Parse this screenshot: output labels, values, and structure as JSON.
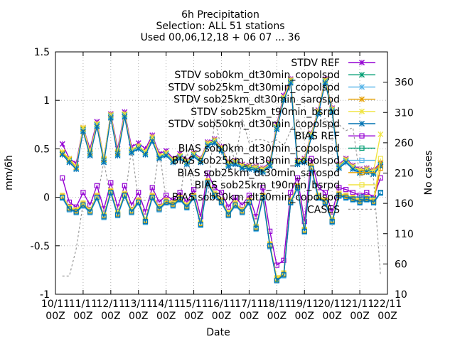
{
  "chart_data": {
    "type": "line",
    "title_lines": [
      "6h Precipitation",
      "Selection: ALL     51 stations",
      "Used 00,06,12,18 + 06 07 ... 36"
    ],
    "xlabel": "Date",
    "ylabel": "mm/6h",
    "y2label": "No cases",
    "ylim": [
      -1,
      1.5
    ],
    "y2lim": [
      10,
      410
    ],
    "xlim_index": [
      0,
      48
    ],
    "yticks": [
      "-1",
      "-0.5",
      "0",
      "0.5",
      "1",
      "1.5"
    ],
    "y2ticks": [
      "10",
      "60",
      "110",
      "160",
      "210",
      "260",
      "310",
      "360"
    ],
    "xticks": [
      {
        "top": "10/11",
        "bottom": "00Z"
      },
      {
        "top": "11/11",
        "bottom": "00Z"
      },
      {
        "top": "12/11",
        "bottom": "00Z"
      },
      {
        "top": "13/11",
        "bottom": "00Z"
      },
      {
        "top": "14/11",
        "bottom": "00Z"
      },
      {
        "top": "15/11",
        "bottom": "00Z"
      },
      {
        "top": "16/11",
        "bottom": "00Z"
      },
      {
        "top": "17/11",
        "bottom": "00Z"
      },
      {
        "top": "18/11",
        "bottom": "00Z"
      },
      {
        "top": "19/11",
        "bottom": "00Z"
      },
      {
        "top": "20/11",
        "bottom": "00Z"
      },
      {
        "top": "21/11",
        "bottom": "00Z"
      },
      {
        "top": "22/11",
        "bottom": "00Z"
      }
    ],
    "grid": true,
    "legend_position": "top-right",
    "x": [
      "10/11 06Z",
      "10/11 12Z",
      "10/11 18Z",
      "11/11 00Z",
      "11/11 06Z",
      "11/11 12Z",
      "11/11 18Z",
      "12/11 00Z",
      "12/11 06Z",
      "12/11 12Z",
      "12/11 18Z",
      "13/11 00Z",
      "13/11 06Z",
      "13/11 12Z",
      "13/11 18Z",
      "14/11 00Z",
      "14/11 06Z",
      "14/11 12Z",
      "14/11 18Z",
      "15/11 00Z",
      "15/11 06Z",
      "15/11 12Z",
      "15/11 18Z",
      "16/11 00Z",
      "16/11 06Z",
      "16/11 12Z",
      "16/11 18Z",
      "17/11 00Z",
      "17/11 06Z",
      "17/11 12Z",
      "17/11 18Z",
      "18/11 00Z",
      "18/11 06Z",
      "18/11 12Z",
      "18/11 18Z",
      "19/11 00Z",
      "19/11 06Z",
      "19/11 12Z",
      "19/11 18Z",
      "20/11 00Z",
      "20/11 06Z",
      "20/11 12Z",
      "20/11 18Z",
      "21/11 00Z",
      "21/11 06Z",
      "21/11 12Z",
      "21/11 18Z"
    ],
    "series": [
      {
        "name": "STDV REF",
        "color": "#9400d3",
        "marker": "x",
        "axis": "y",
        "values": [
          0.55,
          0.4,
          0.35,
          0.72,
          0.5,
          0.78,
          0.4,
          0.86,
          0.5,
          0.88,
          0.52,
          0.56,
          0.5,
          0.64,
          0.45,
          0.48,
          0.4,
          0.45,
          0.38,
          0.46,
          0.4,
          0.57,
          0.6,
          0.52,
          0.36,
          0.38,
          0.34,
          0.33,
          0.32,
          0.3,
          0.36,
          0.75,
          1.05,
          1.22,
          0.38,
          0.4,
          0.66,
          0.9,
          1.22,
          0.92,
          0.34,
          0.4,
          0.33,
          0.29,
          0.3,
          0.28,
          0.36
        ]
      },
      {
        "name": "STDV sob0km_dt30min_copolspd",
        "color": "#009e73",
        "marker": "x",
        "axis": "y",
        "values": [
          0.45,
          0.38,
          0.3,
          0.7,
          0.45,
          0.75,
          0.38,
          0.84,
          0.45,
          0.85,
          0.48,
          0.52,
          0.46,
          0.6,
          0.42,
          0.45,
          0.38,
          0.42,
          0.36,
          0.44,
          0.38,
          0.55,
          0.58,
          0.5,
          0.34,
          0.36,
          0.32,
          0.31,
          0.3,
          0.28,
          0.34,
          0.72,
          1.02,
          1.2,
          0.36,
          0.38,
          0.64,
          0.88,
          1.2,
          0.9,
          0.32,
          0.38,
          0.31,
          0.27,
          0.28,
          0.26,
          0.34
        ]
      },
      {
        "name": "STDV sob25km_dt30min_copolspd",
        "color": "#56b4e9",
        "marker": "x",
        "axis": "y",
        "values": [
          0.44,
          0.37,
          0.3,
          0.69,
          0.44,
          0.74,
          0.37,
          0.83,
          0.44,
          0.84,
          0.47,
          0.51,
          0.45,
          0.59,
          0.41,
          0.44,
          0.37,
          0.41,
          0.35,
          0.43,
          0.37,
          0.54,
          0.57,
          0.49,
          0.33,
          0.35,
          0.31,
          0.3,
          0.29,
          0.27,
          0.33,
          0.71,
          1.01,
          1.19,
          0.35,
          0.37,
          0.63,
          0.87,
          1.19,
          0.89,
          0.31,
          0.37,
          0.3,
          0.26,
          0.27,
          0.25,
          0.33
        ]
      },
      {
        "name": "STDV sob25km_dt30min_sarospd",
        "color": "#e69f00",
        "marker": "x",
        "axis": "y",
        "values": [
          0.46,
          0.39,
          0.31,
          0.71,
          0.46,
          0.76,
          0.39,
          0.85,
          0.46,
          0.86,
          0.49,
          0.53,
          0.47,
          0.62,
          0.43,
          0.46,
          0.39,
          0.43,
          0.37,
          0.45,
          0.39,
          0.56,
          0.59,
          0.51,
          0.35,
          0.37,
          0.33,
          0.32,
          0.31,
          0.29,
          0.35,
          0.73,
          1.03,
          1.21,
          0.37,
          0.39,
          0.65,
          0.89,
          1.21,
          0.91,
          0.33,
          0.39,
          0.32,
          0.28,
          0.29,
          0.27,
          0.35
        ]
      },
      {
        "name": "STDV sob25km_t90min_bsrpd",
        "color": "#f0e442",
        "marker": "x",
        "axis": "y",
        "values": [
          0.47,
          0.4,
          0.32,
          0.72,
          0.47,
          0.76,
          0.4,
          0.85,
          0.47,
          0.86,
          0.49,
          0.53,
          0.47,
          0.62,
          0.43,
          0.46,
          0.39,
          0.43,
          0.37,
          0.45,
          0.39,
          0.56,
          0.59,
          0.51,
          0.35,
          0.37,
          0.33,
          0.32,
          0.31,
          0.29,
          0.35,
          0.73,
          1.03,
          1.21,
          0.37,
          0.39,
          0.65,
          0.89,
          1.21,
          0.91,
          0.33,
          0.39,
          0.32,
          0.28,
          0.29,
          0.27,
          0.65
        ]
      },
      {
        "name": "STDV sob50km_dt30min_copolspd",
        "color": "#0072b2",
        "marker": "x",
        "axis": "y",
        "values": [
          0.44,
          0.36,
          0.29,
          0.68,
          0.43,
          0.73,
          0.36,
          0.82,
          0.43,
          0.83,
          0.46,
          0.5,
          0.44,
          0.58,
          0.4,
          0.43,
          0.36,
          0.4,
          0.34,
          0.42,
          0.36,
          0.53,
          0.56,
          0.48,
          0.32,
          0.34,
          0.3,
          0.29,
          0.28,
          0.26,
          0.32,
          0.7,
          1.0,
          1.18,
          0.34,
          0.36,
          0.62,
          0.86,
          1.18,
          0.88,
          0.3,
          0.36,
          0.29,
          0.25,
          0.26,
          0.24,
          0.32
        ]
      },
      {
        "name": "BIAS REF",
        "color": "#9400d3",
        "marker": "square",
        "axis": "y",
        "values": [
          0.2,
          -0.05,
          -0.1,
          0.05,
          -0.08,
          0.12,
          -0.12,
          0.15,
          -0.1,
          0.12,
          -0.08,
          0.05,
          -0.15,
          0.1,
          -0.05,
          0.02,
          -0.03,
          0.05,
          -0.05,
          0.08,
          -0.2,
          0.25,
          0.1,
          0.05,
          -0.1,
          0.0,
          -0.08,
          0.02,
          -0.2,
          0.1,
          -0.35,
          -0.7,
          -0.65,
          0.05,
          0.2,
          -0.25,
          0.4,
          0.1,
          0.05,
          -0.15,
          0.1,
          0.08,
          0.05,
          0.02,
          0.05,
          0.0,
          0.2
        ]
      },
      {
        "name": "BIAS sob0km_dt30min_copolspd",
        "color": "#009e73",
        "marker": "square",
        "axis": "y",
        "values": [
          0.0,
          -0.12,
          -0.15,
          -0.08,
          -0.15,
          0.0,
          -0.2,
          0.05,
          -0.18,
          0.02,
          -0.15,
          -0.05,
          -0.25,
          0.0,
          -0.12,
          -0.05,
          -0.08,
          -0.02,
          -0.1,
          0.0,
          -0.28,
          0.15,
          0.02,
          -0.05,
          -0.18,
          -0.08,
          -0.15,
          -0.05,
          -0.32,
          0.0,
          -0.5,
          -0.85,
          -0.8,
          -0.05,
          0.1,
          -0.35,
          0.3,
          0.0,
          -0.05,
          -0.25,
          0.02,
          0.0,
          -0.02,
          -0.05,
          -0.02,
          -0.05,
          0.05
        ]
      },
      {
        "name": "BIAS sob25km_dt30min_copolspd",
        "color": "#56b4e9",
        "marker": "square",
        "axis": "y",
        "values": [
          -0.01,
          -0.13,
          -0.16,
          -0.09,
          -0.16,
          -0.01,
          -0.21,
          0.04,
          -0.19,
          0.01,
          -0.16,
          -0.06,
          -0.26,
          -0.01,
          -0.13,
          -0.06,
          -0.09,
          -0.03,
          -0.11,
          -0.01,
          -0.29,
          0.14,
          0.01,
          -0.06,
          -0.19,
          -0.09,
          -0.16,
          -0.06,
          -0.33,
          -0.01,
          -0.51,
          -0.86,
          -0.81,
          -0.06,
          0.09,
          -0.36,
          0.29,
          -0.01,
          -0.06,
          -0.26,
          0.01,
          -0.01,
          -0.03,
          -0.06,
          -0.03,
          -0.06,
          0.04
        ]
      },
      {
        "name": "BIAS sob25km_dt30min_sarospd",
        "color": "#e69f00",
        "marker": "square",
        "axis": "y",
        "values": [
          0.01,
          -0.11,
          -0.14,
          -0.07,
          -0.14,
          0.01,
          -0.19,
          0.06,
          -0.17,
          0.03,
          -0.14,
          -0.04,
          -0.24,
          0.01,
          -0.11,
          -0.04,
          -0.07,
          -0.01,
          -0.09,
          0.01,
          -0.27,
          0.16,
          0.03,
          -0.04,
          -0.17,
          -0.07,
          -0.14,
          -0.04,
          -0.31,
          0.01,
          -0.49,
          -0.84,
          -0.79,
          -0.04,
          0.11,
          -0.34,
          0.31,
          0.01,
          -0.04,
          -0.24,
          0.03,
          0.01,
          -0.01,
          -0.04,
          -0.01,
          -0.04,
          0.3
        ]
      },
      {
        "name": "BIAS sob25km_t90min_bsrpd",
        "color": "#f0e442",
        "marker": "square",
        "axis": "y",
        "values": [
          0.02,
          -0.1,
          -0.13,
          -0.06,
          -0.13,
          0.02,
          -0.18,
          0.07,
          -0.16,
          0.04,
          -0.13,
          -0.03,
          -0.23,
          0.02,
          -0.1,
          -0.03,
          -0.06,
          0.0,
          -0.08,
          0.02,
          -0.26,
          0.17,
          0.04,
          -0.03,
          -0.16,
          -0.06,
          -0.13,
          -0.03,
          -0.3,
          0.02,
          -0.48,
          -0.83,
          -0.78,
          -0.03,
          0.12,
          -0.33,
          0.32,
          0.02,
          -0.03,
          -0.23,
          0.04,
          0.02,
          0.0,
          -0.03,
          0.0,
          -0.03,
          0.4
        ]
      },
      {
        "name": "BIAS sob50km_dt30min_copolspd",
        "color": "#0072b2",
        "marker": "square",
        "axis": "y",
        "values": [
          0.0,
          -0.12,
          -0.15,
          -0.08,
          -0.15,
          0.0,
          -0.2,
          0.05,
          -0.18,
          0.02,
          -0.15,
          -0.05,
          -0.25,
          0.0,
          -0.12,
          -0.05,
          -0.08,
          -0.02,
          -0.1,
          0.0,
          -0.28,
          0.15,
          0.02,
          -0.05,
          -0.18,
          -0.08,
          -0.15,
          -0.05,
          -0.32,
          0.0,
          -0.5,
          -0.86,
          -0.8,
          -0.05,
          0.1,
          -0.35,
          0.3,
          0.0,
          -0.05,
          -0.25,
          0.02,
          0.0,
          -0.02,
          -0.05,
          -0.02,
          -0.05,
          0.05
        ]
      },
      {
        "name": "CASES",
        "color": "#999999",
        "marker": "none",
        "dash": true,
        "axis": "y2",
        "values": [
          40,
          40,
          85,
          160,
          165,
          165,
          230,
          165,
          165,
          165,
          250,
          165,
          165,
          165,
          250,
          165,
          165,
          165,
          250,
          165,
          165,
          165,
          300,
          250,
          260,
          230,
          300,
          260,
          265,
          265,
          260,
          265,
          255,
          280,
          300,
          265,
          290,
          295,
          300,
          285,
          290,
          280,
          285,
          205,
          210,
          200,
          40
        ]
      }
    ]
  }
}
